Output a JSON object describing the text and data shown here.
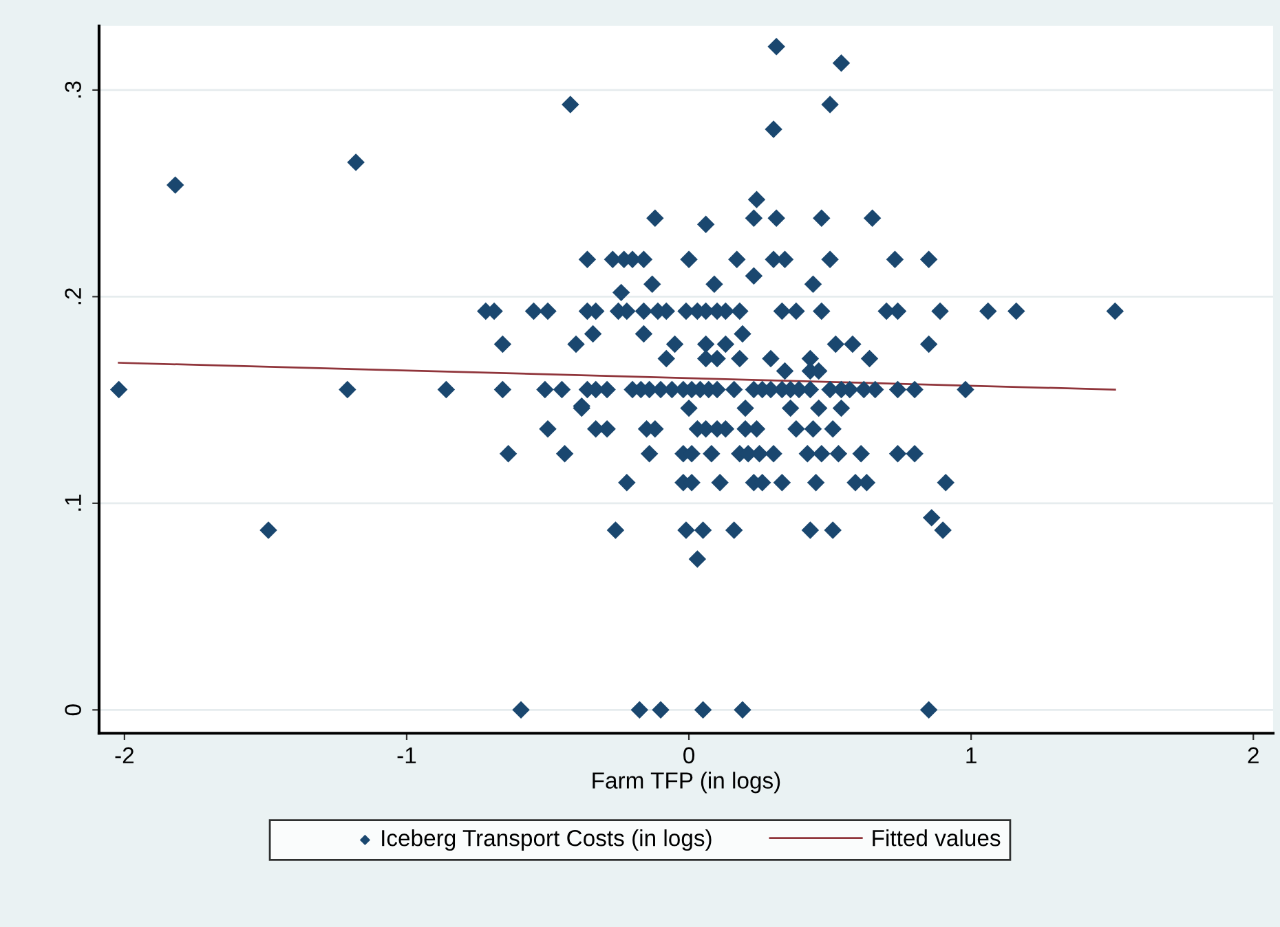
{
  "chart_data": {
    "type": "scatter",
    "xlabel": "Farm TFP (in logs)",
    "xlim": [
      -2.09,
      2.07
    ],
    "xticks": [
      -2,
      -1,
      0,
      1,
      2
    ],
    "ylim": [
      -0.0113,
      0.331
    ],
    "yticks": [
      {
        "value": 0,
        "label": "0"
      },
      {
        "value": 0.1,
        "label": ".1"
      },
      {
        "value": 0.2,
        "label": ".2"
      },
      {
        "value": 0.3,
        "label": ".3"
      }
    ],
    "grid": "y",
    "legend": "bottom",
    "series": [
      {
        "name": "Iceberg Transport Costs (in logs)",
        "marker": "diamond",
        "color": "#1a476f",
        "x": [
          -0.595,
          -0.175,
          -0.1,
          0.05,
          0.19,
          0.85,
          0.31,
          0.54,
          0.5,
          0.3,
          -0.42,
          -1.18,
          -1.82,
          -1.49,
          -2.02,
          -1.21,
          -0.86,
          -0.66,
          -0.38,
          0.24,
          -0.12,
          0.23,
          0.31,
          0.47,
          0.65,
          0.06,
          -0.36,
          -0.27,
          -0.23,
          -0.2,
          -0.16,
          0.0,
          0.17,
          0.3,
          0.34,
          0.5,
          0.73,
          0.85,
          0.23,
          -0.13,
          0.09,
          0.44,
          -0.24,
          -0.72,
          -0.69,
          -0.55,
          -0.5,
          -0.36,
          -0.33,
          -0.25,
          -0.22,
          -0.16,
          -0.11,
          -0.08,
          -0.01,
          0.03,
          0.06,
          0.1,
          0.13,
          0.18,
          0.33,
          0.38,
          0.47,
          0.7,
          0.74,
          0.89,
          1.06,
          1.16,
          1.51,
          -0.34,
          -0.16,
          0.19,
          -0.66,
          -0.4,
          -0.05,
          0.06,
          0.13,
          0.52,
          0.58,
          0.85,
          -0.08,
          0.06,
          0.1,
          0.18,
          0.29,
          0.43,
          0.64,
          0.34,
          0.43,
          0.46,
          -0.51,
          -0.45,
          -0.36,
          -0.33,
          -0.29,
          -0.2,
          -0.17,
          -0.14,
          -0.1,
          -0.06,
          -0.02,
          0.01,
          0.04,
          0.07,
          0.1,
          0.16,
          0.23,
          0.26,
          0.29,
          0.33,
          0.36,
          0.39,
          0.43,
          0.5,
          0.54,
          0.57,
          0.62,
          0.66,
          0.74,
          0.8,
          0.98,
          -0.38,
          0.0,
          0.2,
          0.36,
          0.46,
          0.54,
          -0.5,
          -0.33,
          -0.29,
          -0.15,
          -0.12,
          0.03,
          0.06,
          0.1,
          0.13,
          0.2,
          0.24,
          0.38,
          0.44,
          0.51,
          -0.64,
          -0.44,
          -0.14,
          -0.02,
          0.01,
          0.08,
          0.18,
          0.21,
          0.25,
          0.3,
          0.42,
          0.47,
          0.53,
          0.61,
          0.74,
          0.8,
          -0.22,
          -0.02,
          0.01,
          0.11,
          0.23,
          0.26,
          0.33,
          0.45,
          0.59,
          0.63,
          0.91,
          0.86,
          -0.26,
          -0.01,
          0.05,
          0.16,
          0.43,
          0.51,
          0.9,
          0.03
        ],
        "values": [
          0,
          0,
          0,
          0,
          0,
          0,
          0.321,
          0.313,
          0.293,
          0.281,
          0.293,
          0.265,
          0.254,
          0.087,
          0.155,
          0.155,
          0.155,
          0.155,
          0.147,
          0.247,
          0.238,
          0.238,
          0.238,
          0.238,
          0.238,
          0.235,
          0.218,
          0.218,
          0.218,
          0.218,
          0.218,
          0.218,
          0.218,
          0.218,
          0.218,
          0.218,
          0.218,
          0.218,
          0.21,
          0.206,
          0.206,
          0.206,
          0.202,
          0.193,
          0.193,
          0.193,
          0.193,
          0.193,
          0.193,
          0.193,
          0.193,
          0.193,
          0.193,
          0.193,
          0.193,
          0.193,
          0.193,
          0.193,
          0.193,
          0.193,
          0.193,
          0.193,
          0.193,
          0.193,
          0.193,
          0.193,
          0.193,
          0.193,
          0.193,
          0.182,
          0.182,
          0.182,
          0.177,
          0.177,
          0.177,
          0.177,
          0.177,
          0.177,
          0.177,
          0.177,
          0.17,
          0.17,
          0.17,
          0.17,
          0.17,
          0.17,
          0.17,
          0.164,
          0.164,
          0.164,
          0.155,
          0.155,
          0.155,
          0.155,
          0.155,
          0.155,
          0.155,
          0.155,
          0.155,
          0.155,
          0.155,
          0.155,
          0.155,
          0.155,
          0.155,
          0.155,
          0.155,
          0.155,
          0.155,
          0.155,
          0.155,
          0.155,
          0.155,
          0.155,
          0.155,
          0.155,
          0.155,
          0.155,
          0.155,
          0.155,
          0.155,
          0.146,
          0.146,
          0.146,
          0.146,
          0.146,
          0.146,
          0.136,
          0.136,
          0.136,
          0.136,
          0.136,
          0.136,
          0.136,
          0.136,
          0.136,
          0.136,
          0.136,
          0.136,
          0.136,
          0.136,
          0.124,
          0.124,
          0.124,
          0.124,
          0.124,
          0.124,
          0.124,
          0.124,
          0.124,
          0.124,
          0.124,
          0.124,
          0.124,
          0.124,
          0.124,
          0.124,
          0.11,
          0.11,
          0.11,
          0.11,
          0.11,
          0.11,
          0.11,
          0.11,
          0.11,
          0.11,
          0.11,
          0.093,
          0.087,
          0.087,
          0.087,
          0.087,
          0.087,
          0.087,
          0.087,
          0.073
        ]
      },
      {
        "name": "Fitted values",
        "type": "line",
        "color": "#90353b",
        "x": [
          -2.02,
          1.51
        ],
        "values": [
          0.168,
          0.155
        ]
      }
    ]
  }
}
